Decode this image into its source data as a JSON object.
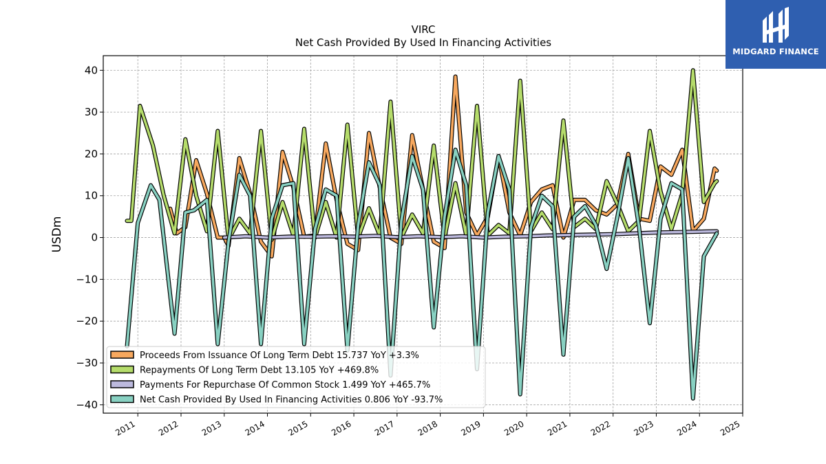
{
  "brand": {
    "name": "MIDGARD FINANCE",
    "background": "#2f5fb0"
  },
  "chart_data": {
    "type": "line",
    "title": "VIRC",
    "subtitle": "Net Cash Provided By Used In Financing Activities",
    "ylabel": "USDm",
    "xlabel": "",
    "ylim": [
      -42,
      43.5
    ],
    "xlim": [
      2010.2,
      2025.0
    ],
    "yticks": [
      -40,
      -30,
      -20,
      -10,
      0,
      10,
      20,
      30,
      40
    ],
    "ytick_labels": [
      "−40",
      "−30",
      "−20",
      "−10",
      "0",
      "10",
      "20",
      "30",
      "40"
    ],
    "xticks": [
      2011,
      2012,
      2013,
      2014,
      2015,
      2016,
      2017,
      2018,
      2019,
      2020,
      2021,
      2022,
      2023,
      2024,
      2025
    ],
    "xtick_labels": [
      "2011",
      "2012",
      "2013",
      "2014",
      "2015",
      "2016",
      "2017",
      "2018",
      "2019",
      "2020",
      "2021",
      "2022",
      "2023",
      "2024",
      "2025"
    ],
    "grid": true,
    "legend_position": "bottom-left",
    "series": [
      {
        "name": "Proceeds From Issuance Of Long Term Debt",
        "legend_label": "Proceeds From Issuance Of Long Term Debt  15.737 YoY +3.3%",
        "color": "#f7a85e",
        "points": [
          [
            2011.75,
            6.9
          ],
          [
            2011.9,
            1.0
          ],
          [
            2012.1,
            2.5
          ],
          [
            2012.35,
            18.5
          ],
          [
            2012.6,
            10.5
          ],
          [
            2012.85,
            0.0
          ],
          [
            2013.0,
            0.0
          ],
          [
            2013.1,
            -2.0
          ],
          [
            2013.35,
            19.0
          ],
          [
            2013.6,
            10.5
          ],
          [
            2013.85,
            -1.0
          ],
          [
            2014.1,
            -4.5
          ],
          [
            2014.35,
            20.5
          ],
          [
            2014.6,
            12.0
          ],
          [
            2014.85,
            0.2
          ],
          [
            2015.1,
            0.5
          ],
          [
            2015.35,
            22.5
          ],
          [
            2015.6,
            9.0
          ],
          [
            2015.85,
            -1.5
          ],
          [
            2016.1,
            -3.0
          ],
          [
            2016.35,
            25.0
          ],
          [
            2016.6,
            12.0
          ],
          [
            2016.85,
            0.0
          ],
          [
            2017.1,
            -1.5
          ],
          [
            2017.35,
            24.5
          ],
          [
            2017.6,
            11.5
          ],
          [
            2017.85,
            -1.0
          ],
          [
            2018.1,
            -2.5
          ],
          [
            2018.35,
            38.5
          ],
          [
            2018.6,
            6.0
          ],
          [
            2018.85,
            0.5
          ],
          [
            2019.1,
            5.0
          ],
          [
            2019.35,
            19.5
          ],
          [
            2019.6,
            6.0
          ],
          [
            2019.85,
            0.5
          ],
          [
            2020.1,
            8.5
          ],
          [
            2020.35,
            11.5
          ],
          [
            2020.6,
            12.5
          ],
          [
            2020.85,
            0.0
          ],
          [
            2021.1,
            9.0
          ],
          [
            2021.35,
            9.0
          ],
          [
            2021.6,
            6.5
          ],
          [
            2021.85,
            5.5
          ],
          [
            2022.1,
            8.0
          ],
          [
            2022.35,
            20.0
          ],
          [
            2022.6,
            4.5
          ],
          [
            2022.85,
            4.0
          ],
          [
            2023.1,
            17.0
          ],
          [
            2023.35,
            15.0
          ],
          [
            2023.6,
            21.0
          ],
          [
            2023.85,
            1.5
          ],
          [
            2024.1,
            4.5
          ],
          [
            2024.35,
            16.5
          ],
          [
            2024.4,
            16.0
          ]
        ]
      },
      {
        "name": "Repayments Of Long Term Debt",
        "legend_label": "Repayments Of Long Term Debt  13.105 YoY +469.8%",
        "color": "#b5dc6b",
        "points": [
          [
            2010.75,
            4.0
          ],
          [
            2010.85,
            4.0
          ],
          [
            2011.05,
            31.5
          ],
          [
            2011.35,
            22.0
          ],
          [
            2011.6,
            10.0
          ],
          [
            2011.85,
            1.0
          ],
          [
            2012.1,
            23.5
          ],
          [
            2012.35,
            10.0
          ],
          [
            2012.6,
            1.5
          ],
          [
            2012.85,
            25.5
          ],
          [
            2013.1,
            -0.5
          ],
          [
            2013.35,
            4.5
          ],
          [
            2013.6,
            1.0
          ],
          [
            2013.85,
            25.5
          ],
          [
            2014.1,
            -0.5
          ],
          [
            2014.35,
            8.5
          ],
          [
            2014.6,
            0.5
          ],
          [
            2014.85,
            26.0
          ],
          [
            2015.1,
            0.0
          ],
          [
            2015.35,
            8.5
          ],
          [
            2015.6,
            0.0
          ],
          [
            2015.85,
            27.0
          ],
          [
            2016.1,
            0.0
          ],
          [
            2016.35,
            7.0
          ],
          [
            2016.6,
            0.5
          ],
          [
            2016.85,
            32.5
          ],
          [
            2017.1,
            0.0
          ],
          [
            2017.35,
            5.5
          ],
          [
            2017.6,
            1.0
          ],
          [
            2017.85,
            22.0
          ],
          [
            2018.1,
            0.0
          ],
          [
            2018.35,
            13.0
          ],
          [
            2018.6,
            0.5
          ],
          [
            2018.85,
            31.5
          ],
          [
            2019.1,
            0.5
          ],
          [
            2019.35,
            3.0
          ],
          [
            2019.6,
            1.0
          ],
          [
            2019.85,
            37.5
          ],
          [
            2020.1,
            1.5
          ],
          [
            2020.35,
            6.0
          ],
          [
            2020.6,
            2.0
          ],
          [
            2020.85,
            28.0
          ],
          [
            2021.1,
            2.5
          ],
          [
            2021.35,
            4.5
          ],
          [
            2021.6,
            2.0
          ],
          [
            2021.85,
            13.5
          ],
          [
            2022.1,
            8.0
          ],
          [
            2022.35,
            1.5
          ],
          [
            2022.6,
            4.0
          ],
          [
            2022.85,
            25.5
          ],
          [
            2023.1,
            11.0
          ],
          [
            2023.35,
            2.0
          ],
          [
            2023.6,
            10.5
          ],
          [
            2023.85,
            40.0
          ],
          [
            2024.1,
            8.5
          ],
          [
            2024.35,
            13.0
          ],
          [
            2024.4,
            13.5
          ]
        ]
      },
      {
        "name": "Payments For Repurchase Of Common Stock",
        "legend_label": "Payments For Repurchase Of Common Stock  1.499 YoY +465.7%",
        "color": "#bcb9dd",
        "points": [
          [
            2013.0,
            0.0
          ],
          [
            2013.5,
            0.3
          ],
          [
            2014.0,
            0.0
          ],
          [
            2014.5,
            0.2
          ],
          [
            2015.0,
            0.2
          ],
          [
            2015.5,
            0.3
          ],
          [
            2016.0,
            0.2
          ],
          [
            2016.5,
            0.4
          ],
          [
            2017.0,
            0.1
          ],
          [
            2017.5,
            0.3
          ],
          [
            2018.0,
            0.1
          ],
          [
            2018.5,
            0.3
          ],
          [
            2019.0,
            0.0
          ],
          [
            2019.5,
            0.2
          ],
          [
            2020.0,
            0.3
          ],
          [
            2020.5,
            0.5
          ],
          [
            2021.0,
            0.6
          ],
          [
            2021.5,
            0.7
          ],
          [
            2022.0,
            0.8
          ],
          [
            2022.5,
            1.0
          ],
          [
            2023.0,
            1.2
          ],
          [
            2023.5,
            1.3
          ],
          [
            2024.0,
            1.4
          ],
          [
            2024.4,
            1.5
          ]
        ]
      },
      {
        "name": "Net Cash Provided By Used In Financing Activities",
        "legend_label": "Net Cash Provided By Used In Financing Activities  0.806 YoY -93.7%",
        "color": "#88d1c2",
        "points": [
          [
            2010.75,
            -26.0
          ],
          [
            2011.0,
            3.5
          ],
          [
            2011.3,
            12.5
          ],
          [
            2011.5,
            9.0
          ],
          [
            2011.85,
            -23.0
          ],
          [
            2012.1,
            6.0
          ],
          [
            2012.3,
            6.5
          ],
          [
            2012.6,
            9.0
          ],
          [
            2012.85,
            -25.5
          ],
          [
            2013.1,
            -1.0
          ],
          [
            2013.35,
            15.0
          ],
          [
            2013.6,
            10.0
          ],
          [
            2013.85,
            -25.5
          ],
          [
            2014.1,
            4.5
          ],
          [
            2014.35,
            12.5
          ],
          [
            2014.6,
            13.0
          ],
          [
            2014.85,
            -25.5
          ],
          [
            2015.1,
            2.0
          ],
          [
            2015.35,
            11.5
          ],
          [
            2015.6,
            10.0
          ],
          [
            2015.85,
            -27.0
          ],
          [
            2016.1,
            3.0
          ],
          [
            2016.35,
            18.0
          ],
          [
            2016.6,
            12.5
          ],
          [
            2016.85,
            -33.0
          ],
          [
            2017.1,
            4.0
          ],
          [
            2017.35,
            19.5
          ],
          [
            2017.6,
            11.5
          ],
          [
            2017.85,
            -21.5
          ],
          [
            2018.1,
            5.0
          ],
          [
            2018.35,
            21.0
          ],
          [
            2018.6,
            12.5
          ],
          [
            2018.85,
            -31.5
          ],
          [
            2019.1,
            6.0
          ],
          [
            2019.35,
            19.5
          ],
          [
            2019.6,
            11.5
          ],
          [
            2019.85,
            -37.5
          ],
          [
            2020.1,
            2.5
          ],
          [
            2020.35,
            10.0
          ],
          [
            2020.6,
            7.5
          ],
          [
            2020.85,
            -28.0
          ],
          [
            2021.1,
            5.0
          ],
          [
            2021.35,
            7.5
          ],
          [
            2021.6,
            3.0
          ],
          [
            2021.85,
            -7.5
          ],
          [
            2022.1,
            5.0
          ],
          [
            2022.35,
            19.0
          ],
          [
            2022.6,
            2.5
          ],
          [
            2022.85,
            -20.5
          ],
          [
            2023.1,
            4.5
          ],
          [
            2023.35,
            13.0
          ],
          [
            2023.6,
            11.5
          ],
          [
            2023.85,
            -38.5
          ],
          [
            2024.1,
            -4.5
          ],
          [
            2024.4,
            1.0
          ]
        ]
      }
    ]
  }
}
